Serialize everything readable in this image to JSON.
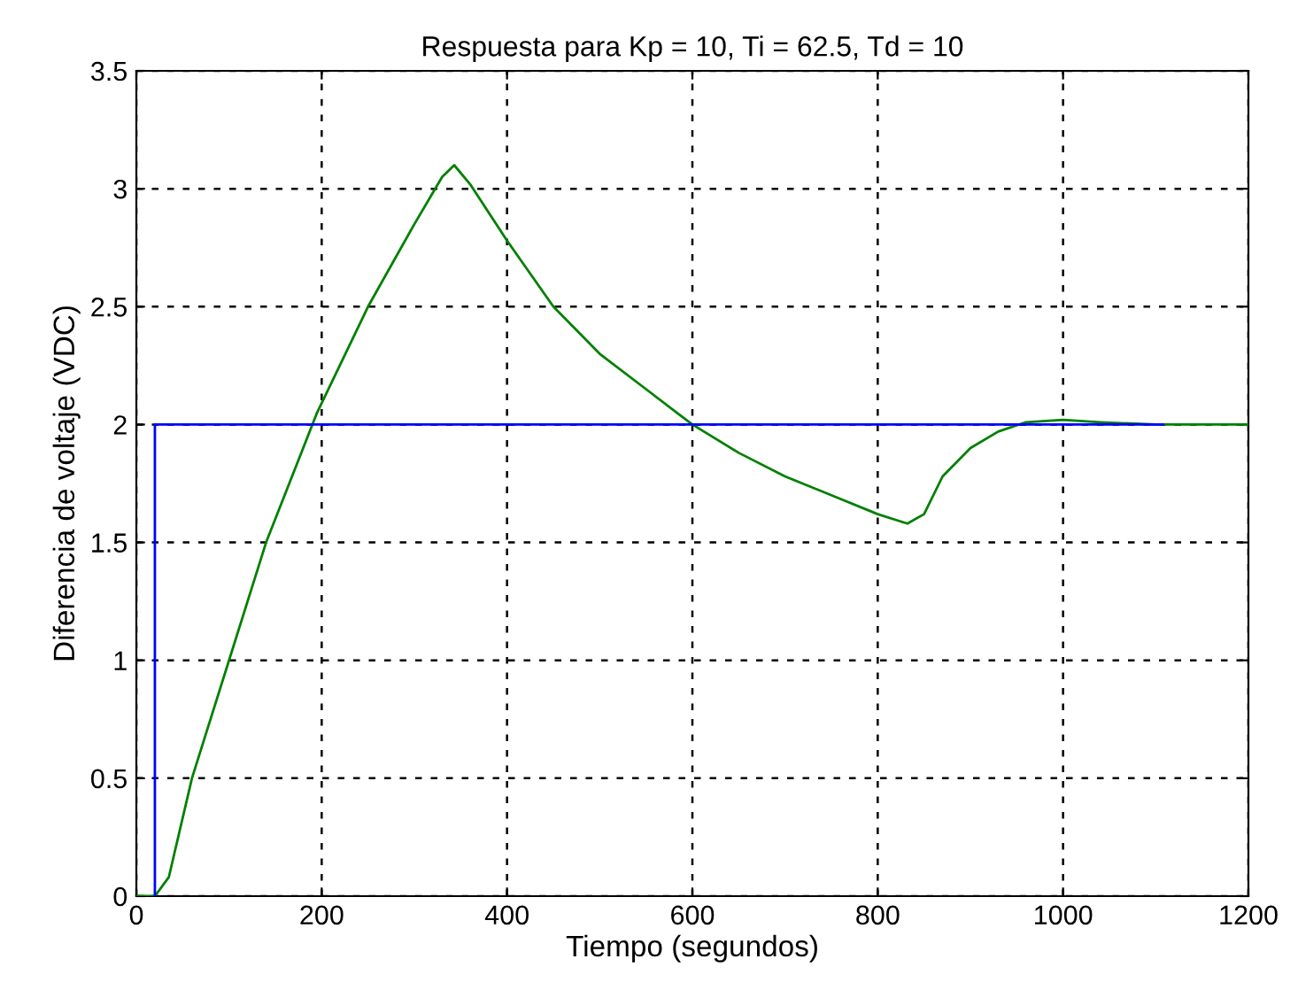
{
  "chart_data": {
    "type": "line",
    "title": "Respuesta para Kp = 10, Ti = 62.5, Td = 10",
    "xlabel": "Tiempo (segundos)",
    "ylabel": "Diferencia de voltaje (VDC)",
    "series": [
      {
        "color": "#0000ff",
        "x": [
          20,
          20,
          1108
        ],
        "values": [
          0,
          2,
          2
        ]
      },
      {
        "color": "#008000",
        "x": [
          0,
          20,
          35,
          60,
          100,
          140,
          195,
          250,
          300,
          330,
          343,
          360,
          400,
          450,
          500,
          550,
          600,
          650,
          700,
          750,
          800,
          832,
          850,
          870,
          900,
          930,
          960,
          1000,
          1040,
          1100,
          1200
        ],
        "values": [
          0,
          0,
          0.08,
          0.5,
          1.0,
          1.5,
          2.05,
          2.5,
          2.85,
          3.05,
          3.1,
          3.02,
          2.78,
          2.5,
          2.3,
          2.15,
          2.0,
          1.88,
          1.78,
          1.7,
          1.62,
          1.58,
          1.62,
          1.78,
          1.9,
          1.97,
          2.01,
          2.02,
          2.01,
          2.0,
          2.0
        ]
      }
    ],
    "xlim": [
      0,
      1200
    ],
    "xticks": [
      0,
      200,
      400,
      600,
      800,
      1000,
      1200
    ],
    "ylim": [
      0,
      3.5
    ],
    "yticks": [
      0,
      0.5,
      1,
      1.5,
      2,
      2.5,
      3,
      3.5
    ],
    "grid": true,
    "line_style": "solid"
  }
}
